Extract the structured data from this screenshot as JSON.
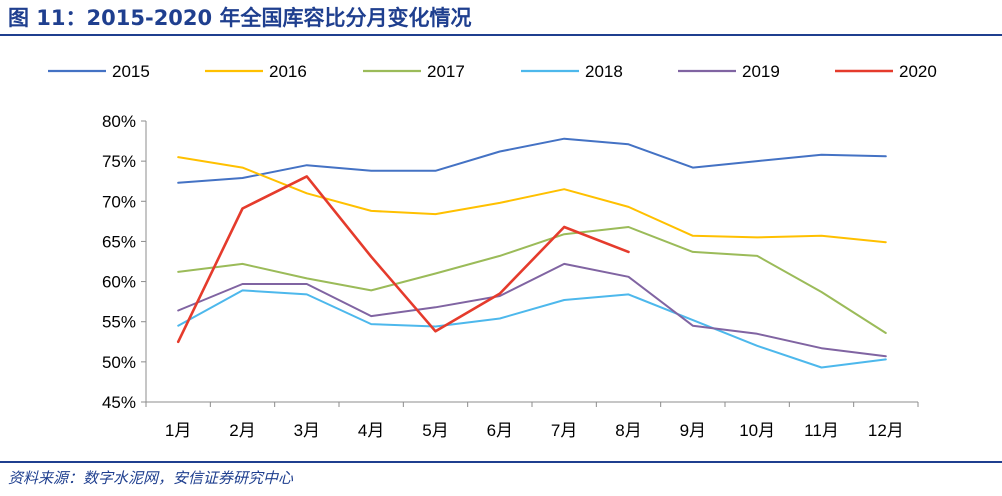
{
  "header": {
    "title": "图 11：2015-2020 年全国库容比分月变化情况"
  },
  "footer": {
    "source": "资料来源：数字水泥网，安信证券研究中心"
  },
  "chart_data": {
    "type": "line",
    "title": "",
    "xlabel": "",
    "ylabel": "",
    "categories": [
      "1月",
      "2月",
      "3月",
      "4月",
      "5月",
      "6月",
      "7月",
      "8月",
      "9月",
      "10月",
      "11月",
      "12月"
    ],
    "ylim": [
      45,
      80
    ],
    "yticks": [
      45,
      50,
      55,
      60,
      65,
      70,
      75,
      80
    ],
    "ytick_labels": [
      "45%",
      "50%",
      "55%",
      "60%",
      "65%",
      "70%",
      "75%",
      "80%"
    ],
    "legend_position": "top",
    "grid": false,
    "series": [
      {
        "name": "2015",
        "color": "#4472c4",
        "values": [
          72.3,
          72.9,
          74.5,
          73.8,
          73.8,
          76.2,
          77.8,
          77.1,
          74.2,
          75.0,
          75.8,
          75.6
        ]
      },
      {
        "name": "2016",
        "color": "#ffc000",
        "values": [
          75.5,
          74.2,
          71.0,
          68.8,
          68.4,
          69.8,
          71.5,
          69.3,
          65.7,
          65.5,
          65.7,
          64.9
        ]
      },
      {
        "name": "2017",
        "color": "#9bbb59",
        "values": [
          61.2,
          62.2,
          60.4,
          58.9,
          61.0,
          63.2,
          65.9,
          66.8,
          63.7,
          63.2,
          58.7,
          53.6
        ]
      },
      {
        "name": "2018",
        "color": "#4db8ec",
        "values": [
          54.5,
          58.9,
          58.4,
          54.7,
          54.4,
          55.4,
          57.7,
          58.4,
          55.2,
          52.0,
          49.3,
          50.3
        ]
      },
      {
        "name": "2019",
        "color": "#8064a2",
        "values": [
          56.4,
          59.7,
          59.7,
          55.7,
          56.8,
          58.2,
          62.2,
          60.6,
          54.5,
          53.5,
          51.7,
          50.7
        ]
      },
      {
        "name": "2020",
        "color": "#e53b2c",
        "values": [
          52.5,
          69.1,
          73.1,
          63.1,
          53.8,
          58.5,
          66.8,
          63.7,
          null,
          null,
          null,
          null
        ]
      }
    ]
  }
}
